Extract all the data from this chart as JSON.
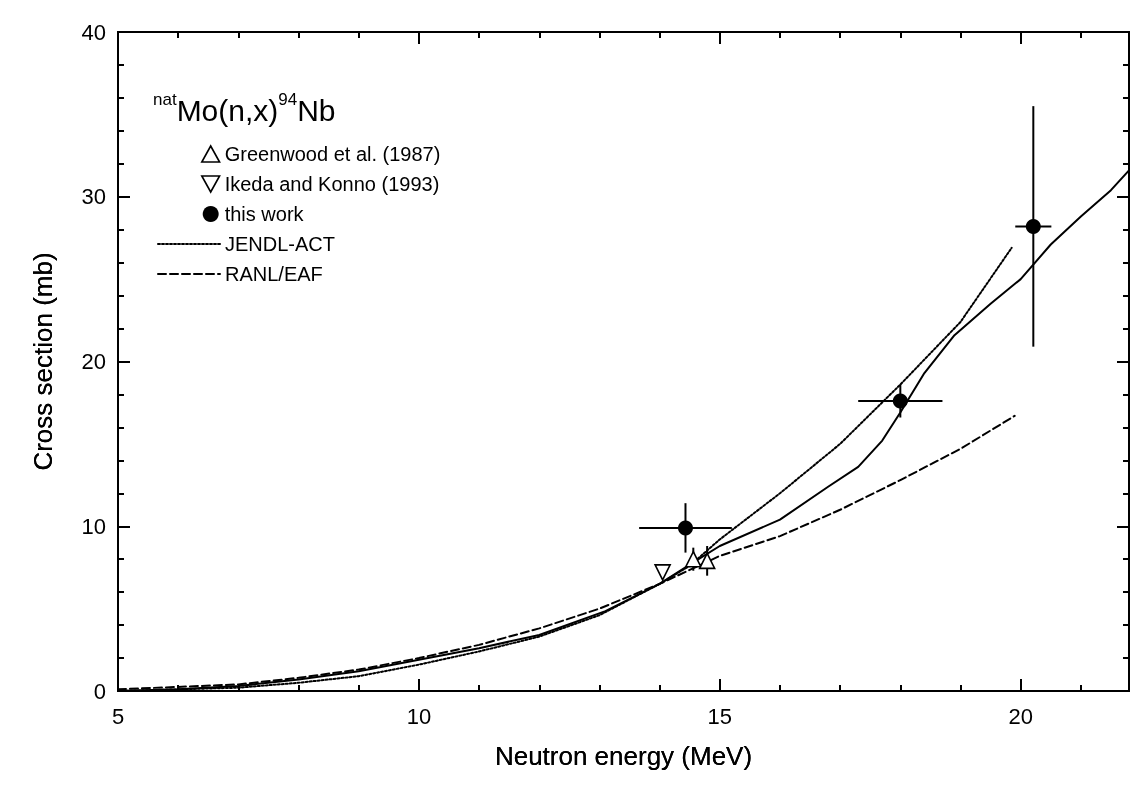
{
  "chart_data": {
    "type": "line",
    "title": "$^{nat}$Mo(n,x)$^{94}$Nb",
    "xlabel": "Neutron energy (MeV)",
    "ylabel": "Cross section (mb)",
    "xlim": [
      5,
      21.8
    ],
    "xticks": [
      5,
      10,
      15,
      20
    ],
    "ylim": [
      0,
      40
    ],
    "yticks": [
      0,
      10,
      20,
      30,
      40
    ],
    "grid": false,
    "legend": "top left",
    "series": [
      {
        "name": "Greenwood et al. (1987)",
        "type": "scatter",
        "marker": "triangle",
        "color": "#000000",
        "x": [
          14.56,
          14.79
        ],
        "values": [
          8.0,
          7.9
        ],
        "errors": [
          0.7,
          0.9
        ]
      },
      {
        "name": "Ikeda and Konno (1993)",
        "type": "scatter",
        "marker": "triangle-down",
        "color": "#000000",
        "x": [
          14.05
        ],
        "values": [
          7.2
        ]
      },
      {
        "name": "this work",
        "type": "scatter",
        "marker": "circle",
        "color": "#000000",
        "x": [
          14.43,
          18.0,
          20.21
        ],
        "values": [
          9.9,
          17.6,
          28.2
        ],
        "errors": [
          1.5,
          1.0,
          7.3
        ],
        "xerrors": [
          0.77,
          0.7,
          0.3
        ]
      },
      {
        "name": "JENDL-ACT",
        "type": "line",
        "line_style": "dotted",
        "color": "#000000",
        "x": [
          5,
          7,
          8,
          9,
          10,
          11,
          12,
          13,
          14,
          14.5,
          15,
          16,
          17,
          18,
          19,
          19.85
        ],
        "values": [
          0,
          0.2,
          0.5,
          0.9,
          1.6,
          2.4,
          3.3,
          4.6,
          6.5,
          7.6,
          9.2,
          12,
          15,
          18.6,
          22.4,
          26.9
        ]
      },
      {
        "name": "RANL/EAF",
        "type": "line",
        "line_style": "dashed",
        "color": "#000000",
        "x": [
          5,
          7,
          8,
          9,
          10,
          11,
          12,
          13,
          14,
          15,
          16,
          17,
          18,
          19,
          19.9
        ],
        "values": [
          0.1,
          0.4,
          0.8,
          1.3,
          2.0,
          2.8,
          3.8,
          5.0,
          6.5,
          8.2,
          9.4,
          11.0,
          12.8,
          14.7,
          16.7
        ]
      },
      {
        "line_style": "solid",
        "color": "#000000",
        "x": [
          5,
          6,
          7,
          8,
          9,
          10,
          11,
          12,
          13.1,
          14,
          14.6,
          15,
          16,
          16.8,
          17.3,
          17.7,
          18,
          18.4,
          18.9,
          19.5,
          20,
          20.5,
          21,
          21.5,
          21.8
        ],
        "values": [
          0,
          0.1,
          0.3,
          0.7,
          1.2,
          1.9,
          2.6,
          3.4,
          4.85,
          6.5,
          7.9,
          8.8,
          10.4,
          12.4,
          13.6,
          15.2,
          16.9,
          19.3,
          21.6,
          23.5,
          25,
          27.1,
          28.8,
          30.4,
          31.6
        ]
      }
    ]
  }
}
